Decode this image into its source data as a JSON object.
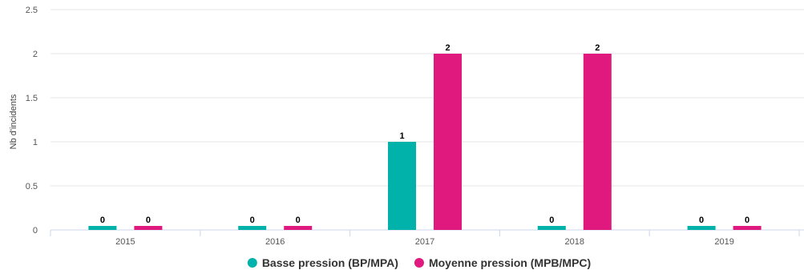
{
  "chart_data": {
    "type": "bar",
    "categories": [
      "2015",
      "2016",
      "2017",
      "2018",
      "2019"
    ],
    "series": [
      {
        "name": "Basse pression (BP/MPA)",
        "values": [
          0,
          0,
          1,
          0,
          0
        ],
        "color": "#00b2a9"
      },
      {
        "name": "Moyenne pression (MPB/MPC)",
        "values": [
          0,
          0,
          2,
          2,
          0
        ],
        "color": "#e0197f"
      }
    ],
    "ylabel": "Nb d'incidents",
    "ylim": [
      0,
      2.5
    ],
    "yticks": [
      "0",
      "0.5",
      "1",
      "1.5",
      "2",
      "2.5"
    ],
    "grid": true,
    "legend": "bottom-center",
    "zero_value_stub": true
  }
}
